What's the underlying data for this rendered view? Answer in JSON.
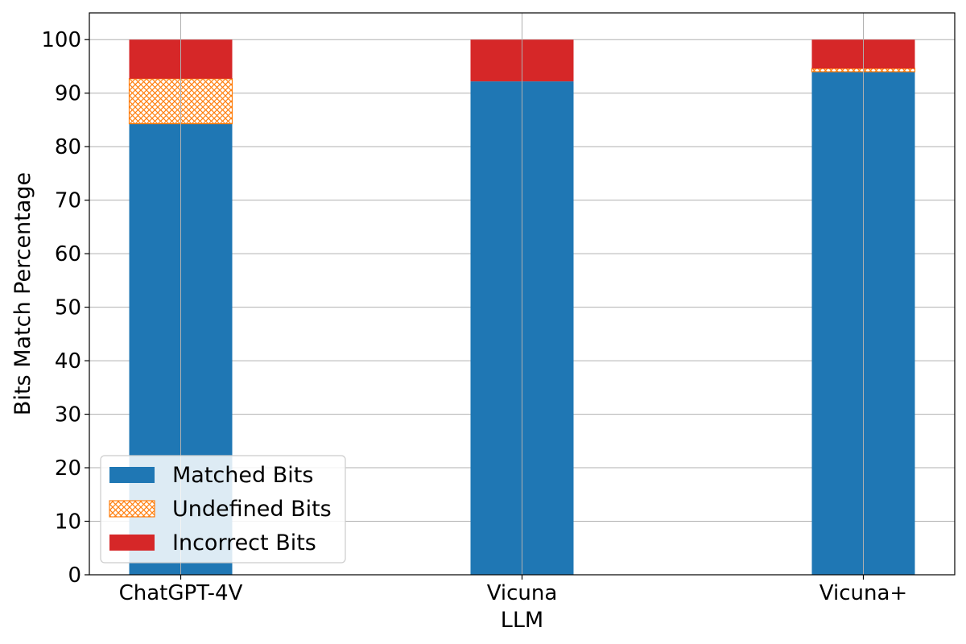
{
  "chart_data": {
    "type": "bar",
    "stacked": true,
    "categories": [
      "ChatGPT-4V",
      "Vicuna",
      "Vicuna+"
    ],
    "series": [
      {
        "name": "Matched Bits",
        "values": [
          84.3,
          92.2,
          94.0
        ],
        "color": "#1f77b4",
        "pattern": "solid"
      },
      {
        "name": "Undefined Bits",
        "values": [
          8.4,
          0.0,
          0.6
        ],
        "color": "#ff7f0e",
        "pattern": "crosshatch"
      },
      {
        "name": "Incorrect Bits",
        "values": [
          7.3,
          7.8,
          5.4
        ],
        "color": "#d62728",
        "pattern": "solid"
      }
    ],
    "xlabel": "LLM",
    "ylabel": "Bits Match Percentage",
    "ylim": [
      0,
      105
    ],
    "yticks": [
      0,
      10,
      20,
      30,
      40,
      50,
      60,
      70,
      80,
      90,
      100
    ],
    "grid": true,
    "legend_position": "lower-left"
  }
}
